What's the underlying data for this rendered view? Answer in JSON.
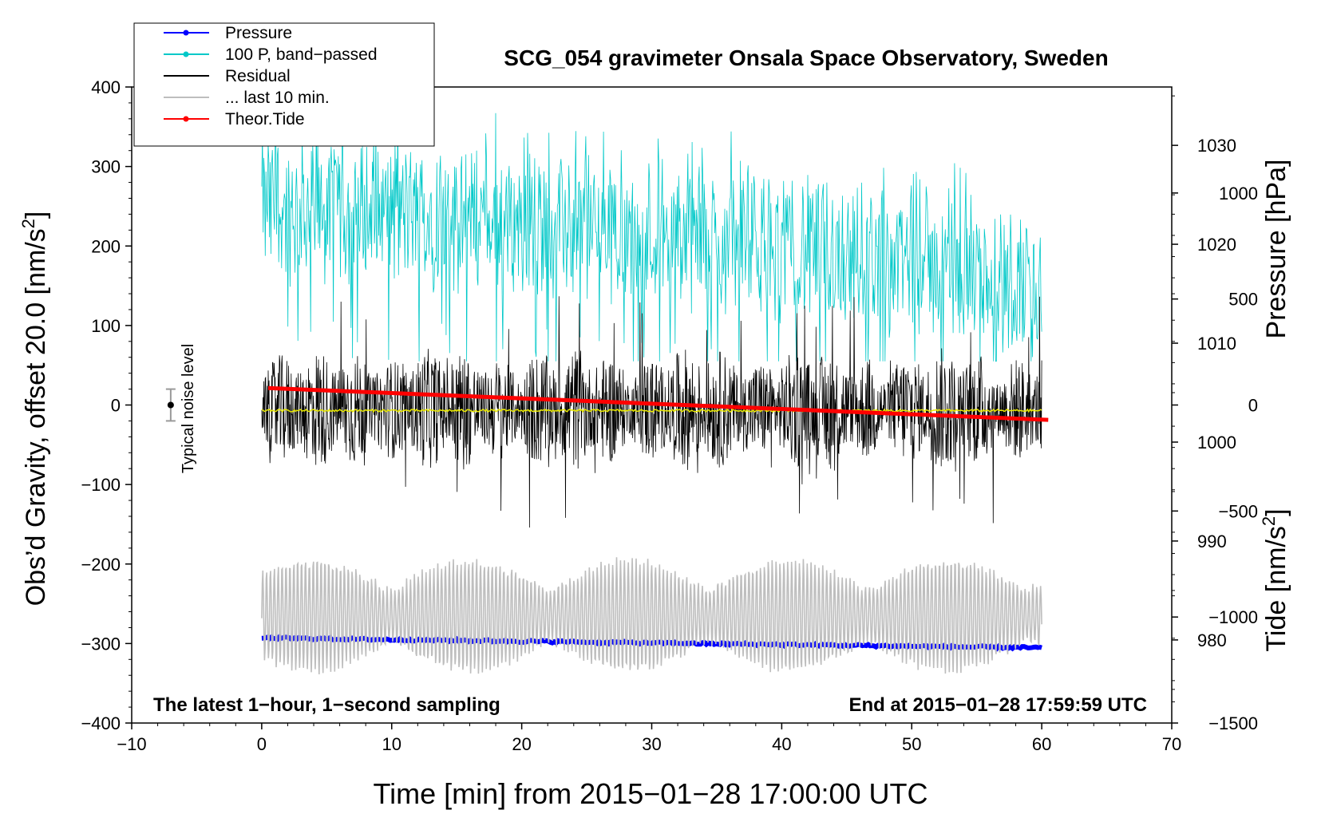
{
  "chart_data": {
    "type": "line",
    "title": "SCG_054 gravimeter Onsala Space Observatory, Sweden",
    "xlabel": "Time [min] from 2015−01−28 17:00:00 UTC",
    "ylabel_left_main": "Obs’d Gravity, offset 20.0 [nm/s",
    "ylabel_left_sup": "2",
    "ylabel_left_end": "]",
    "ylabel_right_pressure": "Pressure [hPa]",
    "ylabel_right_tide_main": "Tide [nm/s",
    "ylabel_right_tide_sup": "2",
    "ylabel_right_tide_end": "]",
    "xlim": [
      -10,
      70
    ],
    "ylim": [
      -400,
      400
    ],
    "pressure_lim": [
      971.6,
      1035.9
    ],
    "tide_lim": [
      -1500,
      1500
    ],
    "x_ticks": [
      -10,
      0,
      10,
      20,
      30,
      40,
      50,
      60,
      70
    ],
    "x_tick_labels": [
      "−10",
      "0",
      "10",
      "20",
      "30",
      "40",
      "50",
      "60",
      "70"
    ],
    "y_ticks": [
      400,
      300,
      200,
      100,
      0,
      -100,
      -200,
      -300,
      -400
    ],
    "y_tick_labels": [
      "400",
      "300",
      "200",
      "100",
      "0",
      "−100",
      "−200",
      "−300",
      "−400"
    ],
    "pressure_ticks": [
      1030,
      1020,
      1010,
      1000,
      990,
      980
    ],
    "pressure_tick_labels": [
      "1030",
      "1020",
      "1010",
      "1000",
      "990",
      "980"
    ],
    "tide_ticks": [
      1000,
      500,
      0,
      -500,
      -1000,
      -1500
    ],
    "tide_tick_labels": [
      "1000",
      "500",
      "0",
      "−500",
      "−1000",
      "−1500"
    ],
    "legend": [
      {
        "label": "Pressure",
        "color": "#0000ff",
        "marker": true
      },
      {
        "label": "100 P, band−passed",
        "color": "#00c8c8",
        "marker": true
      },
      {
        "label": "Residual",
        "color": "#000000",
        "marker": false
      },
      {
        "label": "... last 10 min.",
        "color": "#bebebe",
        "marker": false
      },
      {
        "label": "Theor.Tide",
        "color": "#ff0000",
        "marker": true
      }
    ],
    "annotations": {
      "bottom_left": "The latest 1−hour, 1−second sampling",
      "bottom_right": "End at 2015−01−28 17:59:59 UTC",
      "noise_label": "Typical noise level"
    },
    "noise_bar": {
      "x": -7,
      "center": 0,
      "half_range": 20
    },
    "series": [
      {
        "name": "Pressure",
        "axis": "pressure",
        "color": "#0000ff",
        "x": [
          0,
          60
        ],
        "values": [
          980.2,
          979.2
        ]
      },
      {
        "name": "100 P, band−passed",
        "axis": "left",
        "color": "#00c8c8",
        "x": [
          0,
          10,
          20,
          30,
          40,
          50,
          60
        ],
        "values": [
          250,
          240,
          230,
          215,
          200,
          180,
          150
        ],
        "amplitude": 80
      },
      {
        "name": "Residual",
        "axis": "left",
        "color": "#000000",
        "x": [
          0,
          60
        ],
        "values": [
          -5,
          -5
        ],
        "amplitude": 60
      },
      {
        "name": "yellow smoothed",
        "axis": "left",
        "color": "#e8e800",
        "x": [
          0,
          60
        ],
        "values": [
          -7,
          -7
        ]
      },
      {
        "name": "... last 10 min.",
        "axis": "left",
        "color": "#bebebe",
        "x": [
          0,
          60
        ],
        "values": [
          -265,
          -265
        ],
        "amplitude": 70
      },
      {
        "name": "Theor.Tide",
        "axis": "tide",
        "color": "#ff0000",
        "x": [
          0.5,
          60.5
        ],
        "values": [
          80,
          -70
        ]
      }
    ]
  }
}
